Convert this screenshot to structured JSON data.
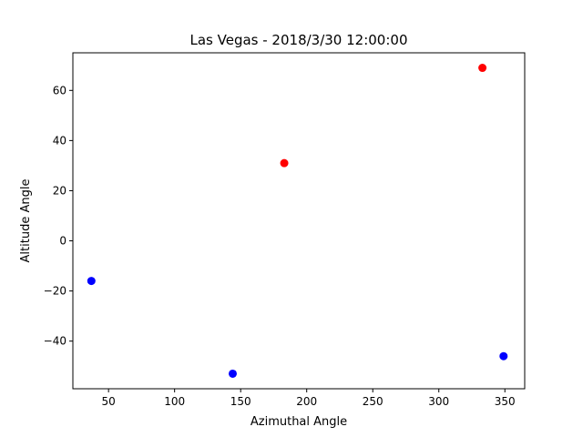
{
  "chart_data": {
    "type": "scatter",
    "title": "Las Vegas - 2018/3/30 12:00:00",
    "xlabel": "Azimuthal Angle",
    "ylabel": "Altitude Angle",
    "xlim": [
      23,
      365
    ],
    "ylim": [
      -59,
      75
    ],
    "xticks": [
      50,
      100,
      150,
      200,
      250,
      300,
      350
    ],
    "yticks": [
      -40,
      -20,
      0,
      20,
      40,
      60
    ],
    "grid": false,
    "points": [
      {
        "x": 37,
        "y": -16,
        "color": "#0000ff"
      },
      {
        "x": 144,
        "y": -53,
        "color": "#0000ff"
      },
      {
        "x": 183,
        "y": 31,
        "color": "#ff0000"
      },
      {
        "x": 333,
        "y": 69,
        "color": "#ff0000"
      },
      {
        "x": 349,
        "y": -46,
        "color": "#0000ff"
      }
    ]
  }
}
